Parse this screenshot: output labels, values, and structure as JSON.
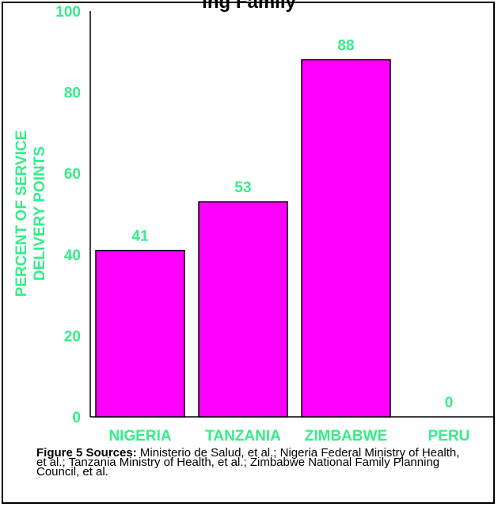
{
  "chart_data": {
    "type": "bar",
    "title": "ing Family",
    "ylabel": "PERCENT OF SERVICE DELIVERY POINTS",
    "ylabel_lines": [
      "PERCENT OF SERVICE",
      "DELIVERY POINTS"
    ],
    "categories": [
      "NIGERIA",
      "TANZANIA",
      "ZIMBABWE",
      "PERU"
    ],
    "values": [
      41,
      53,
      88,
      0
    ],
    "data_labels": [
      "41",
      "53",
      "88",
      "0"
    ],
    "yticks": [
      0,
      20,
      40,
      60,
      80,
      100
    ],
    "ylim": [
      0,
      100
    ],
    "grid": false,
    "colors": {
      "bar_fill": "#ff00ff",
      "bar_stroke": "#000000",
      "text_accent": "#33ee88",
      "axis": "#000000"
    }
  },
  "caption": {
    "label": "Figure 5 Sources:",
    "text": " Ministerio de Salud, et al.; Nigeria Federal Ministry of Health, et al.; Tanzania Ministry of Health, et al.; Zimbabwe National Family Planning Council, et al."
  }
}
